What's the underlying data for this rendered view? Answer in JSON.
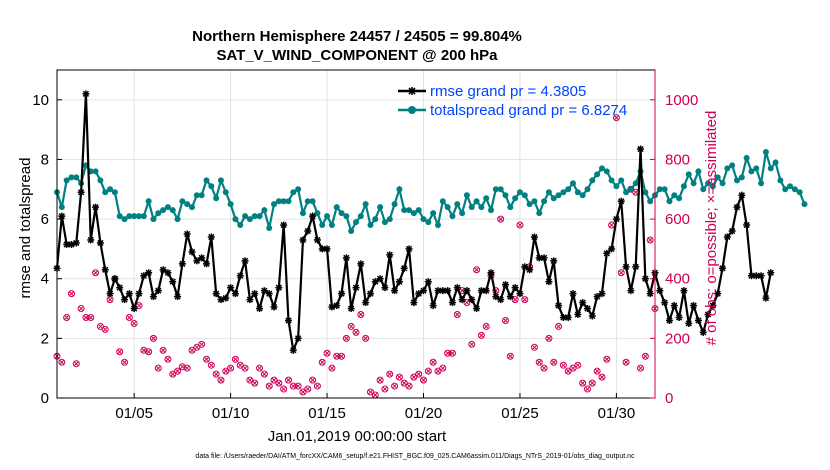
{
  "chart_data": {
    "type": "line",
    "title": "Northern Hemisphere 24457 / 24505 = 99.804%",
    "subtitle": "SAT_V_WIND_COMPONENT @ 200 hPa",
    "xlabel": "Jan.01,2019 00:00:00 start",
    "ylabel_left": "rmse and totalspread",
    "ylabel_right": "# of obs: o=possible; ×=assimilated",
    "xlim": [
      1,
      32
    ],
    "ylim_left": [
      0,
      11
    ],
    "ylim_right": [
      0,
      1100
    ],
    "x_ticks": [
      {
        "value": 5,
        "label": "01/05"
      },
      {
        "value": 10,
        "label": "01/10"
      },
      {
        "value": 15,
        "label": "01/15"
      },
      {
        "value": 20,
        "label": "01/20"
      },
      {
        "value": 25,
        "label": "01/25"
      },
      {
        "value": 30,
        "label": "01/30"
      }
    ],
    "y_ticks_left": [
      0,
      2,
      4,
      6,
      8,
      10
    ],
    "y_ticks_right": [
      0,
      200,
      400,
      600,
      800,
      1000
    ],
    "grid": true,
    "legend_position": "top-right",
    "colors": {
      "rmse": "#000000",
      "totalspread": "#008080",
      "obs": "#cc0055",
      "right_axis": "#cc0055",
      "legend_text": "#0044ff"
    },
    "series": [
      {
        "name": "rmse grand pr = 4.3805",
        "axis": "left",
        "x_start": 1.0,
        "x_step": 0.25,
        "values": [
          4.35,
          6.1,
          5.15,
          5.15,
          5.2,
          6.9,
          10.2,
          5.3,
          6.4,
          5.2,
          4.3,
          3.5,
          4.0,
          3.7,
          3.3,
          3.5,
          3.0,
          3.5,
          4.1,
          4.2,
          3.4,
          3.6,
          4.3,
          4.2,
          3.9,
          3.4,
          4.5,
          5.5,
          4.9,
          4.6,
          4.7,
          4.5,
          5.4,
          3.5,
          3.3,
          3.35,
          3.7,
          3.5,
          4.1,
          4.6,
          3.3,
          3.5,
          3.0,
          3.6,
          3.5,
          3.05,
          3.7,
          5.8,
          2.6,
          1.6,
          2.0,
          5.3,
          5.6,
          6.1,
          5.3,
          5.0,
          5.0,
          3.05,
          3.1,
          3.5,
          4.7,
          3.0,
          3.7,
          4.5,
          3.2,
          3.5,
          3.9,
          4.0,
          3.7,
          4.8,
          3.6,
          3.9,
          4.35,
          5.0,
          3.2,
          3.5,
          3.6,
          3.9,
          3.1,
          3.6,
          3.6,
          3.6,
          3.2,
          3.7,
          3.3,
          3.6,
          3.3,
          3.0,
          3.6,
          3.6,
          4.2,
          3.4,
          3.3,
          3.8,
          3.4,
          3.7,
          3.5,
          4.4,
          4.3,
          5.4,
          4.7,
          4.7,
          3.9,
          4.6,
          3.1,
          2.7,
          2.7,
          3.5,
          2.8,
          3.2,
          3.0,
          2.75,
          3.4,
          3.5,
          4.85,
          5.0,
          6.0,
          6.6,
          4.4,
          3.6,
          4.4,
          8.35,
          4.0,
          3.5,
          4.2,
          3.6,
          3.2,
          2.6,
          3.1,
          2.7,
          3.6,
          2.5,
          3.1,
          2.6,
          2.2,
          2.8,
          3.1,
          3.5,
          4.35,
          5.4,
          5.6,
          6.4,
          6.8,
          5.8,
          4.1,
          4.1,
          4.1,
          3.35,
          4.2
        ]
      },
      {
        "name": "totalspread grand pr = 6.8274",
        "axis": "left",
        "x_start": 1.0,
        "x_step": 0.25,
        "values": [
          6.9,
          6.4,
          7.3,
          7.4,
          7.4,
          7.2,
          7.8,
          7.6,
          7.6,
          7.3,
          6.9,
          7.0,
          6.9,
          6.1,
          6.0,
          6.1,
          6.1,
          6.1,
          6.1,
          6.6,
          6.0,
          6.2,
          6.3,
          6.4,
          6.3,
          6.0,
          6.6,
          6.5,
          6.4,
          6.8,
          6.8,
          7.3,
          7.1,
          6.7,
          7.3,
          6.9,
          6.5,
          6.0,
          5.8,
          6.1,
          6.0,
          6.1,
          6.1,
          6.3,
          5.7,
          6.5,
          6.6,
          6.6,
          6.6,
          6.9,
          7.0,
          6.2,
          6.6,
          6.6,
          6.2,
          5.8,
          6.1,
          5.8,
          6.4,
          6.2,
          6.1,
          5.6,
          5.9,
          6.1,
          6.5,
          5.8,
          6.0,
          6.4,
          5.9,
          6.0,
          6.5,
          7.0,
          6.3,
          6.3,
          6.2,
          6.3,
          6.0,
          5.9,
          6.2,
          5.8,
          6.6,
          6.4,
          6.1,
          6.5,
          6.2,
          6.8,
          6.4,
          6.6,
          6.4,
          6.7,
          6.3,
          7.0,
          7.0,
          6.8,
          6.4,
          6.7,
          6.9,
          6.8,
          6.5,
          6.6,
          6.2,
          6.6,
          6.9,
          6.7,
          6.8,
          6.9,
          7.0,
          7.2,
          6.9,
          6.8,
          7.0,
          7.3,
          7.5,
          7.7,
          7.6,
          7.3,
          7.1,
          7.3,
          6.9,
          7.0,
          7.2,
          7.6,
          6.9,
          6.6,
          6.8,
          7.0,
          7.0,
          6.6,
          6.8,
          6.7,
          7.1,
          7.5,
          7.2,
          7.6,
          7.0,
          7.2,
          7.1,
          7.4,
          7.2,
          7.7,
          7.8,
          7.3,
          7.4,
          8.05,
          7.6,
          7.7,
          7.2,
          8.25,
          7.7,
          7.9,
          7.3,
          7.0,
          7.1,
          7.0,
          6.9,
          6.5
        ]
      },
      {
        "name": "obs possible",
        "axis": "right",
        "marker": "o",
        "x_start": 1.0,
        "x_step": 0.25,
        "values": [
          140,
          120,
          270,
          350,
          115,
          300,
          270,
          270,
          420,
          240,
          230,
          330,
          400,
          155,
          120,
          270,
          250,
          310,
          160,
          155,
          200,
          100,
          160,
          130,
          80,
          90,
          105,
          100,
          160,
          170,
          180,
          130,
          110,
          80,
          60,
          90,
          100,
          130,
          110,
          100,
          60,
          50,
          100,
          80,
          40,
          60,
          50,
          30,
          60,
          40,
          40,
          20,
          30,
          60,
          40,
          120,
          150,
          100,
          140,
          140,
          200,
          240,
          220,
          280,
          200,
          20,
          10,
          60,
          30,
          80,
          40,
          70,
          50,
          40,
          70,
          80,
          60,
          90,
          120,
          90,
          100,
          150,
          150,
          280,
          360,
          320,
          180,
          430,
          210,
          240,
          410,
          360,
          600,
          260,
          140,
          330,
          580,
          330,
          440,
          170,
          120,
          100,
          200,
          120,
          240,
          110,
          90,
          100,
          110,
          50,
          30,
          50,
          90,
          70,
          130,
          580,
          940,
          420,
          120,
          700,
          690,
          100,
          140,
          530,
          300,
          300,
          180,
          230,
          70,
          50,
          200,
          450,
          50,
          120,
          100,
          30,
          120,
          40,
          50,
          20,
          30,
          140,
          130,
          90,
          100,
          160,
          90,
          310,
          70,
          240,
          420,
          150,
          60,
          300,
          100,
          90
        ]
      }
    ],
    "footnote": "data file: /Users/raeder/DAI/ATM_forcXX/CAM6_setup/f.e21.FHIST_BGC.f09_025.CAM6assim.011/Diags_NTrS_2019-01/obs_diag_output.nc"
  }
}
